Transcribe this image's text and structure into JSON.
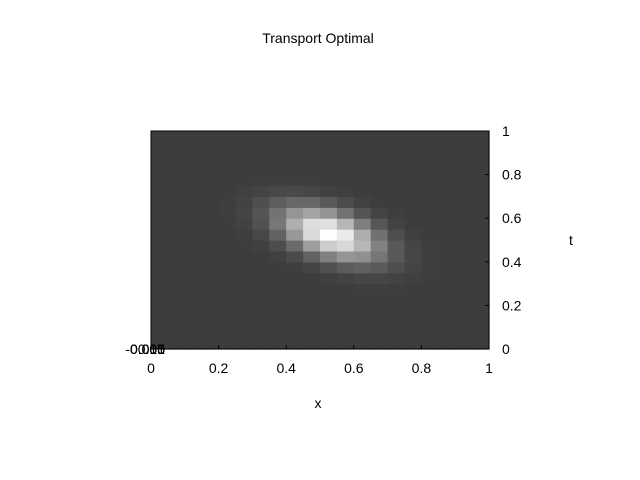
{
  "chart_data": {
    "type": "heatmap",
    "title": "Transport Optimal",
    "xlabel": "x",
    "ylabel": "t",
    "xlim": [
      0,
      1
    ],
    "ylim": [
      0,
      1
    ],
    "x_ticks": [
      "0",
      "0.2",
      "0.4",
      "0.6",
      "0.8",
      "1"
    ],
    "y_ticks": [
      "0",
      "0.2",
      "0.4",
      "0.6",
      "0.8",
      "1"
    ],
    "overlapping_left_labels": [
      "-0.005",
      "0",
      "0.005",
      "0.01",
      "0.015"
    ],
    "grid": false,
    "colormap": "gray",
    "background_value_color": "#3c3c3c",
    "peak_value_color": "#ffffff",
    "grid_resolution": [
      20,
      20
    ],
    "density": {
      "shape": "gaussian",
      "center": [
        0.53,
        0.53
      ],
      "sigma_major": 0.115,
      "sigma_minor": 0.065,
      "major_axis_angle_deg": -35
    }
  }
}
